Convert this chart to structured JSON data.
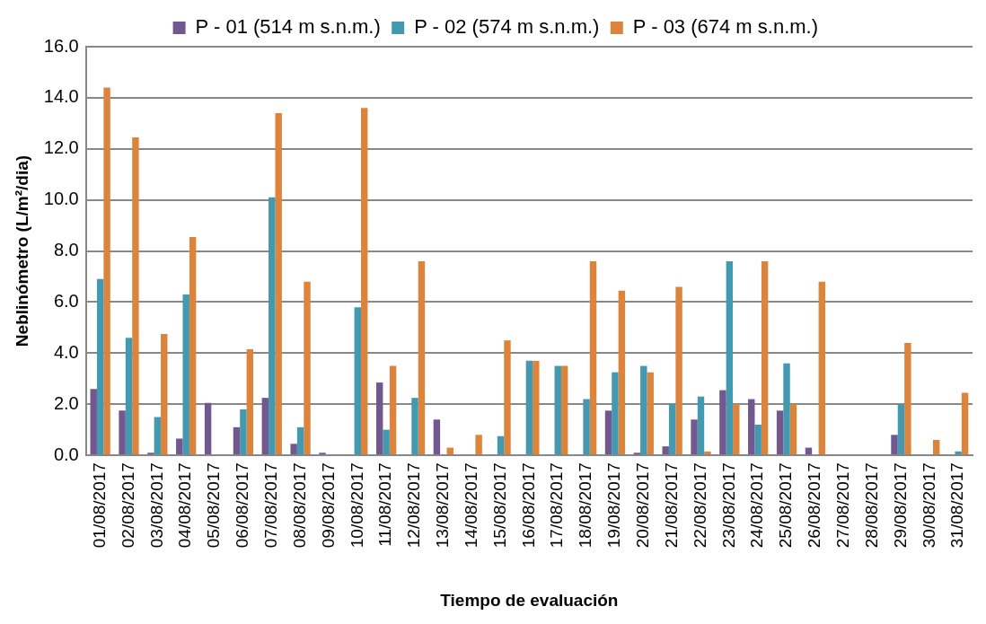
{
  "chart_data": {
    "type": "bar",
    "xlabel": "Tiempo de evaluación",
    "ylabel": "Neblinómetro (L/m²/dia)",
    "categories": [
      "01/08/2017",
      "02/08/2017",
      "03/08/2017",
      "04/08/2017",
      "05/08/2017",
      "06/08/2017",
      "07/08/2017",
      "08/08/2017",
      "09/08/2017",
      "10/08/2017",
      "11/08/2017",
      "12/08/2017",
      "13/08/2017",
      "14/08/2017",
      "15/08/2017",
      "16/08/2017",
      "17/08/2017",
      "18/08/2017",
      "19/08/2017",
      "20/08/2017",
      "21/08/2017",
      "22/08/2017",
      "23/08/2017",
      "24/08/2017",
      "25/08/2017",
      "26/08/2017",
      "27/08/2017",
      "28/08/2017",
      "29/08/2017",
      "30/08/2017",
      "31/08/2017"
    ],
    "series": [
      {
        "name": "P - 01 (514 m s.n.m.)",
        "color": "#71598f",
        "values": [
          2.6,
          1.75,
          0.1,
          0.65,
          2.05,
          1.1,
          2.25,
          0.45,
          0.1,
          0,
          2.85,
          0,
          1.4,
          0,
          0,
          0,
          0,
          0,
          1.75,
          0.1,
          0.35,
          1.4,
          2.55,
          2.2,
          1.75,
          0.3,
          null,
          0,
          0.8,
          0,
          0
        ]
      },
      {
        "name": "P - 02 (574 m s.n.m.)",
        "color": "#4299b0",
        "values": [
          6.9,
          4.6,
          1.5,
          6.3,
          0,
          1.8,
          10.1,
          1.1,
          0,
          5.8,
          1.0,
          2.25,
          0,
          0,
          0.75,
          3.7,
          3.5,
          2.2,
          3.25,
          3.5,
          2.0,
          2.3,
          7.6,
          1.2,
          3.6,
          0,
          0,
          0,
          2.0,
          0,
          0.15
        ]
      },
      {
        "name": "P - 03 (674 m s.n.m.)",
        "color": "#dd843c",
        "values": [
          14.4,
          12.45,
          4.75,
          8.55,
          0,
          4.15,
          13.4,
          6.8,
          0,
          13.6,
          3.5,
          7.6,
          0.3,
          0.8,
          4.5,
          3.7,
          3.5,
          7.6,
          6.45,
          3.25,
          6.6,
          0.15,
          2.0,
          7.6,
          2.0,
          6.8,
          0,
          0,
          4.4,
          0.6,
          2.45
        ]
      }
    ],
    "ylim": [
      0,
      16
    ],
    "yticks": [
      {
        "value": 0,
        "label": "0.0"
      },
      {
        "value": 2,
        "label": "2.0"
      },
      {
        "value": 4,
        "label": "4.0"
      },
      {
        "value": 6,
        "label": "6.0"
      },
      {
        "value": 8,
        "label": "8.0"
      },
      {
        "value": 10,
        "label": "10.0"
      },
      {
        "value": 12,
        "label": "12.0"
      },
      {
        "value": 14,
        "label": "14.0"
      },
      {
        "value": 16,
        "label": "16.0"
      }
    ],
    "grid": "y",
    "legend": "top"
  }
}
